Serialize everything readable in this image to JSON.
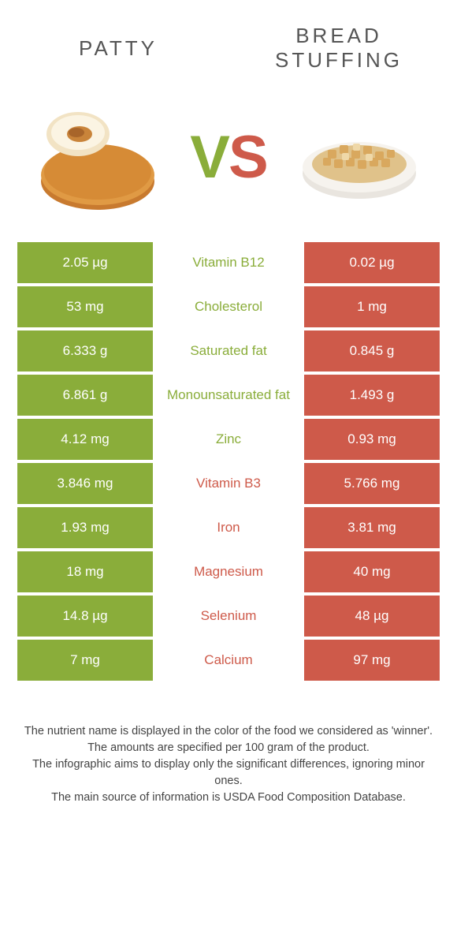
{
  "colors": {
    "green": "#8aad3a",
    "red": "#ce5a4a",
    "heading": "#555555",
    "footer_text": "#444444",
    "background": "#ffffff"
  },
  "headings": {
    "left": "PATTY",
    "right_line1": "BREAD",
    "right_line2": "STUFFING"
  },
  "vs": {
    "v": "V",
    "s": "S"
  },
  "rows": [
    {
      "left": "2.05 µg",
      "mid": "Vitamin B12",
      "right": "0.02 µg",
      "winner": "left"
    },
    {
      "left": "53 mg",
      "mid": "Cholesterol",
      "right": "1 mg",
      "winner": "left"
    },
    {
      "left": "6.333 g",
      "mid": "Saturated fat",
      "right": "0.845 g",
      "winner": "left"
    },
    {
      "left": "6.861 g",
      "mid": "Monounsaturated fat",
      "right": "1.493 g",
      "winner": "left"
    },
    {
      "left": "4.12 mg",
      "mid": "Zinc",
      "right": "0.93 mg",
      "winner": "left"
    },
    {
      "left": "3.846 mg",
      "mid": "Vitamin B3",
      "right": "5.766 mg",
      "winner": "right"
    },
    {
      "left": "1.93 mg",
      "mid": "Iron",
      "right": "3.81 mg",
      "winner": "right"
    },
    {
      "left": "18 mg",
      "mid": "Magnesium",
      "right": "40 mg",
      "winner": "right"
    },
    {
      "left": "14.8 µg",
      "mid": "Selenium",
      "right": "48 µg",
      "winner": "right"
    },
    {
      "left": "7 mg",
      "mid": "Calcium",
      "right": "97 mg",
      "winner": "right"
    }
  ],
  "footer": {
    "l1": "The nutrient name is displayed in the color of the food we considered as 'winner'.",
    "l2": "The amounts are specified per 100 gram of the product.",
    "l3": "The infographic aims to display only the significant differences, ignoring minor ones.",
    "l4": "The main source of information is USDA Food Composition Database."
  }
}
